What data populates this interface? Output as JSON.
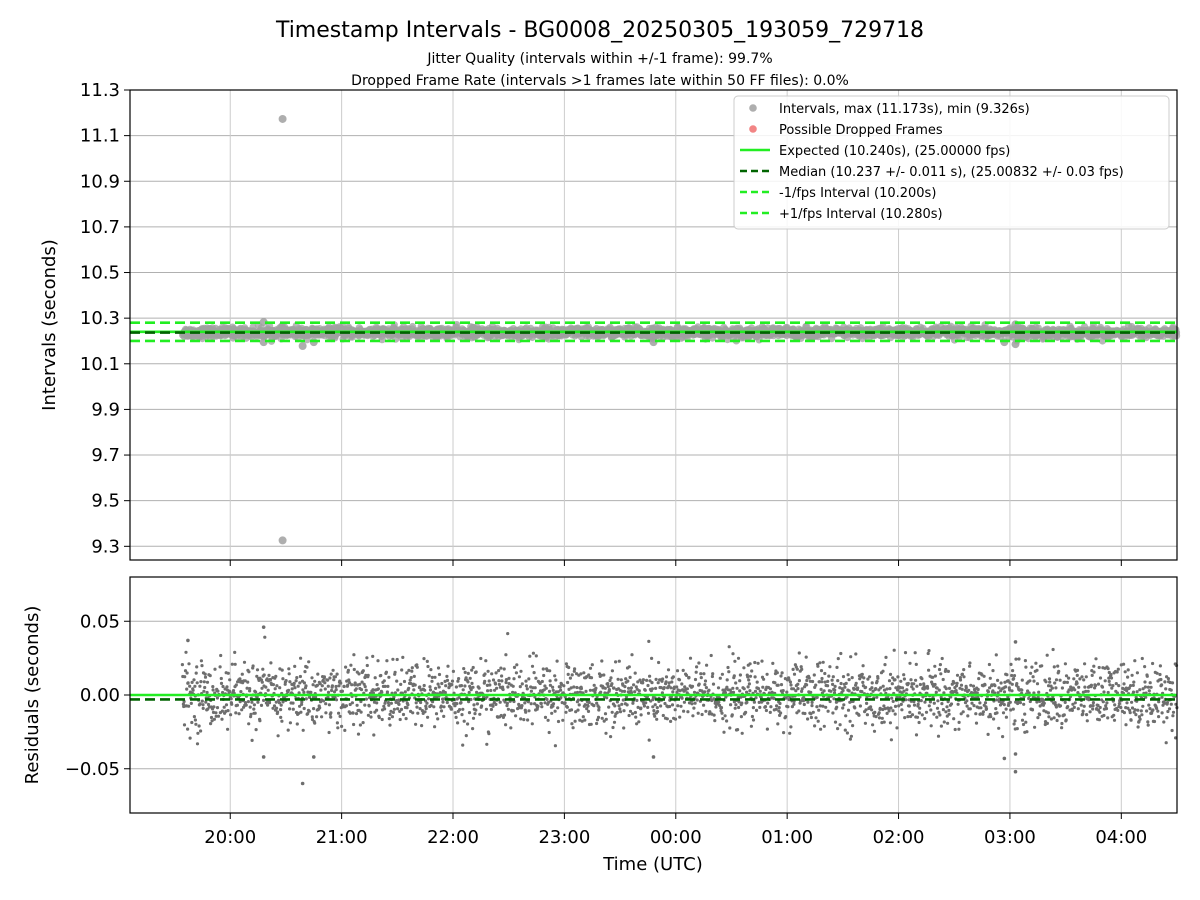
{
  "chart_data": {
    "title": "Timestamp Intervals - BG0008_20250305_193059_729718",
    "subtitle_lines": [
      "Jitter Quality (intervals within +/-1 frame): 99.7%",
      "Dropped Frame Rate (intervals >1 frames late within 50 FF files): 0.0%"
    ],
    "xlabel": "Time (UTC)",
    "x_tick_labels": [
      "20:00",
      "21:00",
      "22:00",
      "23:00",
      "00:00",
      "01:00",
      "02:00",
      "03:00",
      "04:00"
    ],
    "x_tick_hours": [
      20,
      21,
      22,
      23,
      24,
      25,
      26,
      27,
      28
    ],
    "xlim_hours": [
      19.1,
      28.5
    ],
    "data_start_hour": 19.57,
    "data_end_hour": 28.5,
    "panels": [
      {
        "type": "scatter",
        "name": "intervals",
        "ylabel": "Intervals (seconds)",
        "ylim": [
          9.24,
          11.3
        ],
        "y_ticks": [
          9.3,
          9.5,
          9.7,
          9.9,
          10.1,
          10.3,
          10.5,
          10.7,
          10.9,
          11.1,
          11.3
        ],
        "y_tick_labels": [
          "9.3",
          "9.5",
          "9.7",
          "9.9",
          "10.1",
          "10.3",
          "10.5",
          "10.7",
          "10.9",
          "11.1",
          "11.3"
        ],
        "grid": true,
        "legend_position": "top-right",
        "point_color": "#a0a0a0",
        "center": 10.237,
        "spread": 0.011,
        "outliers": [
          {
            "x": 20.47,
            "y": 11.173
          },
          {
            "x": 20.47,
            "y": 9.326
          },
          {
            "x": 20.3,
            "y": 10.283
          },
          {
            "x": 20.65,
            "y": 10.178
          },
          {
            "x": 20.75,
            "y": 10.195
          },
          {
            "x": 20.3,
            "y": 10.195
          },
          {
            "x": 23.8,
            "y": 10.195
          },
          {
            "x": 27.05,
            "y": 10.186
          },
          {
            "x": 27.05,
            "y": 10.273
          },
          {
            "x": 26.95,
            "y": 10.195
          }
        ],
        "lines": [
          {
            "key": "expected",
            "y": 10.24,
            "color": "#22ee22",
            "dash": "solid"
          },
          {
            "key": "median",
            "y": 10.237,
            "color": "#006400",
            "dash": "dashed"
          },
          {
            "key": "minus",
            "y": 10.2,
            "color": "#22ee22",
            "dash": "dashed"
          },
          {
            "key": "plus",
            "y": 10.28,
            "color": "#22ee22",
            "dash": "dashed"
          }
        ],
        "legend": [
          {
            "label": "Intervals, max (11.173s), min (9.326s)",
            "kind": "marker",
            "color": "#a0a0a0"
          },
          {
            "label": "Possible Dropped Frames",
            "kind": "marker",
            "color": "#f07070"
          },
          {
            "label": "Expected (10.240s), (25.00000 fps)",
            "kind": "solid",
            "color": "#22ee22"
          },
          {
            "label": "Median (10.237 +/- 0.011 s), (25.00832 +/- 0.03 fps)",
            "kind": "dashed",
            "color": "#006400"
          },
          {
            "label": "-1/fps Interval (10.200s)",
            "kind": "dashed",
            "color": "#22ee22"
          },
          {
            "label": "+1/fps Interval (10.280s)",
            "kind": "dashed",
            "color": "#22ee22"
          }
        ]
      },
      {
        "type": "scatter",
        "name": "residuals",
        "ylabel": "Residuals (seconds)",
        "ylim": [
          -0.08,
          0.08
        ],
        "y_ticks": [
          -0.05,
          0.0,
          0.05
        ],
        "y_tick_labels": [
          "−0.05",
          "0.00",
          "0.05"
        ],
        "grid": true,
        "point_color": "#6e6e6e",
        "center": 0.0,
        "spread": 0.011,
        "outliers": [
          {
            "x": 20.3,
            "y": 0.046
          },
          {
            "x": 19.62,
            "y": 0.037
          },
          {
            "x": 27.05,
            "y": 0.036
          },
          {
            "x": 20.65,
            "y": -0.06
          },
          {
            "x": 27.05,
            "y": -0.052
          },
          {
            "x": 26.95,
            "y": -0.043
          },
          {
            "x": 20.75,
            "y": -0.042
          },
          {
            "x": 20.3,
            "y": -0.042
          },
          {
            "x": 23.8,
            "y": -0.042
          },
          {
            "x": 27.05,
            "y": -0.04
          }
        ],
        "lines": [
          {
            "key": "expected",
            "y": 0.0,
            "color": "#22ee22",
            "dash": "solid"
          },
          {
            "key": "median",
            "y": -0.003,
            "color": "#006400",
            "dash": "dashed"
          }
        ]
      }
    ]
  }
}
